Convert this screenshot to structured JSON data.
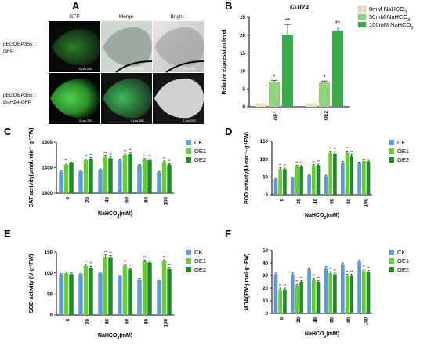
{
  "panels": {
    "A": {
      "letter": "A",
      "columns": [
        "GFP",
        "Merge",
        "Bright"
      ],
      "rows": [
        "pEGOEP35s: : GFP",
        "pEGOEP35s: : GsHZ4-GFP"
      ],
      "scale_text": "0 μm 250",
      "colors": {
        "gfp_dim": "#1f5a1f",
        "gfp_bright": "#4dc24d",
        "merge_bg": "#c8d6c8",
        "bright_bg": "#d9d9d9",
        "dark_bg": "#0a0a0a"
      }
    },
    "B": {
      "letter": "B"
    },
    "C": {
      "letter": "C"
    },
    "D": {
      "letter": "D"
    },
    "E": {
      "letter": "E"
    },
    "F": {
      "letter": "F"
    }
  },
  "chart_data": [
    {
      "id": "B",
      "type": "bar",
      "title": "GsHZ4",
      "xlabel": "",
      "ylabel": "Relative expression level",
      "ylim": [
        0,
        25
      ],
      "yticks": [
        0,
        5,
        10,
        15,
        20,
        25
      ],
      "categories": [
        "OE1",
        "OE2"
      ],
      "legend_position": "top-right",
      "series": [
        {
          "name": "0mM NaHCO3",
          "color": "#f2dcb3",
          "values": [
            1.0,
            1.0
          ],
          "errors": [
            0,
            0
          ],
          "sig": [
            "",
            ""
          ]
        },
        {
          "name": "50mM NaHCO3",
          "color": "#8fd37f",
          "values": [
            7.0,
            6.8
          ],
          "errors": [
            0.4,
            0.4
          ],
          "sig": [
            "*",
            "*"
          ]
        },
        {
          "name": "100mM NaHCO3",
          "color": "#3da84a",
          "values": [
            20.2,
            21.3
          ],
          "errors": [
            2.8,
            1.0
          ],
          "sig": [
            "**",
            "**"
          ]
        }
      ]
    },
    {
      "id": "C",
      "type": "bar",
      "title": "",
      "xlabel": "NaHCO3(mM)",
      "ylabel": "CAT activity(μmol.min-1·g-1FW)",
      "ylim": [
        1400,
        1500
      ],
      "yticks": [
        1400,
        1450,
        1500
      ],
      "categories": [
        "0",
        "20",
        "40",
        "60",
        "80",
        "100"
      ],
      "legend_position": "right",
      "series": [
        {
          "name": "CK",
          "color": "#5f9ad6",
          "values": [
            1442,
            1443,
            1446,
            1464,
            1455,
            1441
          ],
          "errors": [
            1.5,
            1.5,
            1.5,
            1.5,
            1.5,
            1.5
          ],
          "sig": [
            "",
            "",
            "",
            "",
            "",
            ""
          ]
        },
        {
          "name": "OE1",
          "color": "#66cc33",
          "values": [
            1457,
            1465,
            1471,
            1475,
            1466,
            1461
          ],
          "errors": [
            2,
            2,
            2,
            2,
            2,
            2
          ],
          "sig": [
            "**",
            "**",
            "**",
            "**",
            "**",
            "**"
          ]
        },
        {
          "name": "OE2",
          "color": "#208a2a",
          "values": [
            1459,
            1468,
            1469,
            1477,
            1465,
            1456
          ],
          "errors": [
            2,
            2,
            2,
            2,
            2,
            2
          ],
          "sig": [
            "**",
            "**",
            "**",
            "**",
            "**",
            "**"
          ]
        }
      ]
    },
    {
      "id": "D",
      "type": "bar",
      "title": "",
      "xlabel": "NaHCO3(mM)",
      "ylabel": "POD activity(U·min-1·g-1FW)",
      "ylim": [
        0,
        150
      ],
      "yticks": [
        0,
        50,
        100,
        150
      ],
      "categories": [
        "0",
        "20",
        "40",
        "60",
        "80",
        "100"
      ],
      "legend_position": "right",
      "series": [
        {
          "name": "CK",
          "color": "#5f9ad6",
          "values": [
            44,
            48,
            55,
            52,
            90,
            90
          ],
          "errors": [
            2,
            2,
            2,
            3,
            4,
            2
          ],
          "sig": [
            "",
            "",
            "",
            "",
            "",
            ""
          ]
        },
        {
          "name": "OE1",
          "color": "#66cc33",
          "values": [
            73,
            80,
            82,
            117,
            118,
            95
          ],
          "errors": [
            3,
            3,
            3,
            5,
            5,
            3
          ],
          "sig": [
            "**",
            "**",
            "**",
            "**",
            "**",
            ""
          ]
        },
        {
          "name": "OE2",
          "color": "#208a2a",
          "values": [
            72,
            79,
            83,
            116,
            108,
            94
          ],
          "errors": [
            3,
            3,
            3,
            5,
            6,
            3
          ],
          "sig": [
            "**",
            "**",
            "**",
            "**",
            "**",
            ""
          ]
        }
      ]
    },
    {
      "id": "E",
      "type": "bar",
      "title": "",
      "xlabel": "NaHCO3(mM)",
      "ylabel": "SOD activity (U·g-1FW)",
      "ylim": [
        0,
        150
      ],
      "yticks": [
        0,
        50,
        100,
        150
      ],
      "categories": [
        "0",
        "20",
        "40",
        "60",
        "80",
        "100"
      ],
      "legend_position": "right",
      "series": [
        {
          "name": "CK",
          "color": "#5f9ad6",
          "values": [
            96,
            97,
            100,
            92,
            85,
            82
          ],
          "errors": [
            2,
            2,
            2,
            2,
            2,
            2
          ],
          "sig": [
            "",
            "",
            "",
            "",
            "",
            ""
          ]
        },
        {
          "name": "OE1",
          "color": "#66cc33",
          "values": [
            99,
            117,
            139,
            118,
            128,
            128
          ],
          "errors": [
            3,
            3,
            4,
            3,
            3,
            3
          ],
          "sig": [
            "",
            "**",
            "**",
            "**",
            "**",
            "**"
          ]
        },
        {
          "name": "OE2",
          "color": "#208a2a",
          "values": [
            97,
            113,
            138,
            108,
            125,
            110
          ],
          "errors": [
            3,
            3,
            4,
            3,
            3,
            3
          ],
          "sig": [
            "",
            "**",
            "**",
            "**",
            "**",
            "**"
          ]
        }
      ]
    },
    {
      "id": "F",
      "type": "bar",
      "title": "",
      "xlabel": "NaHCO3(mM)",
      "ylabel": "MDA(FW·μmol·g-1FW)",
      "ylim": [
        0,
        50
      ],
      "yticks": [
        0,
        10,
        20,
        30,
        40,
        50
      ],
      "categories": [
        "0",
        "20",
        "40",
        "60",
        "80",
        "100"
      ],
      "legend_position": "right",
      "series": [
        {
          "name": "CK",
          "color": "#5f9ad6",
          "values": [
            31,
            31,
            35,
            36,
            39,
            41
          ],
          "errors": [
            1,
            1,
            1,
            1,
            1,
            1
          ],
          "sig": [
            "",
            "",
            "",
            "",
            "",
            ""
          ]
        },
        {
          "name": "OE1",
          "color": "#66cc33",
          "values": [
            19,
            22,
            27,
            32,
            30,
            34
          ],
          "errors": [
            1,
            1,
            1,
            1,
            1,
            1
          ],
          "sig": [
            "**",
            "**",
            "**",
            "**",
            "**",
            "**"
          ]
        },
        {
          "name": "OE2",
          "color": "#208a2a",
          "values": [
            19,
            25,
            25,
            31,
            30,
            33
          ],
          "errors": [
            1,
            1,
            1,
            1,
            1,
            1
          ],
          "sig": [
            "**",
            "**",
            "**",
            "**",
            "**",
            "**"
          ]
        }
      ]
    }
  ]
}
